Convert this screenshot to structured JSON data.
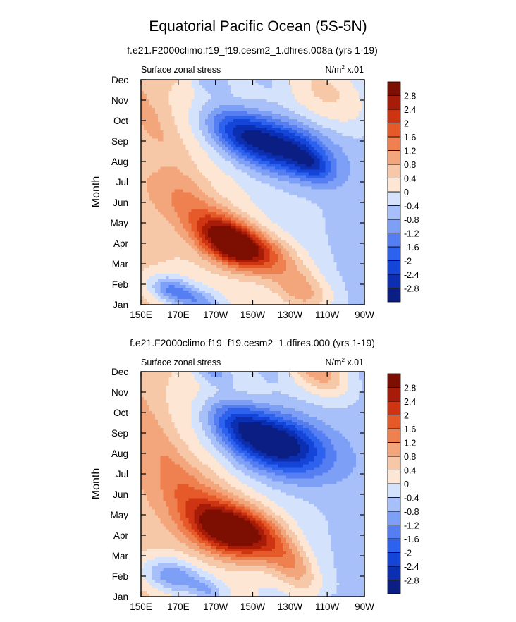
{
  "title": "Equatorial Pacific Ocean (5S-5N)",
  "colors": {
    "scale": [
      "#0a1e84",
      "#0c2fb2",
      "#1544d8",
      "#2d62ee",
      "#557ef2",
      "#7e9ff6",
      "#a8c0fa",
      "#d4e2fc",
      "#fde6d4",
      "#f7c8a8",
      "#f3a57c",
      "#ef8050",
      "#e65a2a",
      "#cf3412",
      "#a61c08",
      "#7d0e02"
    ],
    "axes": "#000000",
    "background": "#ffffff"
  },
  "chart_data": [
    {
      "type": "heatmap",
      "case_label": "f.e21.F2000climo.f19_f19.cesm2_1.dfires.008a (yrs 1-19)",
      "left_label": "Surface zonal stress",
      "units_label": "N/m",
      "units_sup": "2",
      "units_scale": " x.01",
      "ylabel": "Month",
      "xlabel": "",
      "x_ticks": [
        "150E",
        "170E",
        "170W",
        "150W",
        "130W",
        "110W",
        "90W"
      ],
      "y_ticks": [
        "Jan",
        "Feb",
        "Mar",
        "Apr",
        "May",
        "Jun",
        "Jul",
        "Aug",
        "Sep",
        "Oct",
        "Nov",
        "Dec"
      ],
      "xlim": [
        "150E",
        "90W"
      ],
      "ylim": [
        "Jan",
        "Dec"
      ],
      "colorbar_levels": [
        "-2.8",
        "-2.4",
        "-2",
        "-1.6",
        "-1.2",
        "-0.8",
        "-0.4",
        "0",
        "0.4",
        "0.8",
        "1.2",
        "1.6",
        "2",
        "2.4",
        "2.8"
      ],
      "blobs": [
        {
          "lon": 0.4,
          "mon": 3.1,
          "sx": 0.095,
          "sy": 0.88,
          "amp": 3.4
        },
        {
          "lon": 0.55,
          "mon": 2.5,
          "sx": 0.11,
          "sy": 0.7,
          "amp": 1.2
        },
        {
          "lon": 0.2,
          "mon": 5.0,
          "sx": 0.1,
          "sy": 1.1,
          "amp": 0.9
        },
        {
          "lon": 0.72,
          "mon": 0.7,
          "sx": 0.09,
          "sy": 0.9,
          "amp": 1.3
        },
        {
          "lon": 0.62,
          "mon": 7.7,
          "sx": 0.14,
          "sy": 1.0,
          "amp": -2.6
        },
        {
          "lon": 0.42,
          "mon": 8.6,
          "sx": 0.1,
          "sy": 0.9,
          "amp": -1.6
        },
        {
          "lon": 0.77,
          "mon": 6.8,
          "sx": 0.06,
          "sy": 0.6,
          "amp": -1.1
        },
        {
          "lon": 0.14,
          "mon": 0.7,
          "sx": 0.07,
          "sy": 0.5,
          "amp": -1.7
        },
        {
          "lon": 0.28,
          "mon": 0.0,
          "sx": 0.06,
          "sy": 0.5,
          "amp": -1.1
        },
        {
          "lon": 0.3,
          "mon": 11.0,
          "sx": 0.07,
          "sy": 0.5,
          "amp": -0.9
        },
        {
          "lon": 0.85,
          "mon": 10.3,
          "sx": 0.13,
          "sy": 1.3,
          "amp": 0.9
        },
        {
          "lon": 0.05,
          "mon": 9.0,
          "sx": 0.06,
          "sy": 1.8,
          "amp": 0.4
        },
        {
          "lon": 0.55,
          "mon": 11.2,
          "sx": 0.07,
          "sy": 0.8,
          "amp": -0.5
        }
      ]
    },
    {
      "type": "heatmap",
      "case_label": "f.e21.F2000climo.f19_f19.cesm2_1.dfires.000 (yrs 1-19)",
      "left_label": "Surface zonal stress",
      "units_label": "N/m",
      "units_sup": "2",
      "units_scale": " x.01",
      "ylabel": "Month",
      "xlabel": "",
      "x_ticks": [
        "150E",
        "170E",
        "170W",
        "150W",
        "130W",
        "110W",
        "90W"
      ],
      "y_ticks": [
        "Jan",
        "Feb",
        "Mar",
        "Apr",
        "May",
        "Jun",
        "Jul",
        "Aug",
        "Sep",
        "Oct",
        "Nov",
        "Dec"
      ],
      "xlim": [
        "150E",
        "90W"
      ],
      "ylim": [
        "Jan",
        "Dec"
      ],
      "colorbar_levels": [
        "-2.8",
        "-2.4",
        "-2",
        "-1.6",
        "-1.2",
        "-0.8",
        "-0.4",
        "0",
        "0.4",
        "0.8",
        "1.2",
        "1.6",
        "2",
        "2.4",
        "2.8"
      ],
      "blobs": [
        {
          "lon": 0.42,
          "mon": 3.2,
          "sx": 0.13,
          "sy": 0.95,
          "amp": 3.6
        },
        {
          "lon": 0.68,
          "mon": 1.5,
          "sx": 0.07,
          "sy": 1.0,
          "amp": 1.2
        },
        {
          "lon": 0.22,
          "mon": 5.0,
          "sx": 0.12,
          "sy": 1.3,
          "amp": 1.0
        },
        {
          "lon": 0.6,
          "mon": 7.5,
          "sx": 0.15,
          "sy": 1.1,
          "amp": -3.2
        },
        {
          "lon": 0.42,
          "mon": 8.6,
          "sx": 0.09,
          "sy": 0.8,
          "amp": -1.2
        },
        {
          "lon": 0.14,
          "mon": 1.0,
          "sx": 0.09,
          "sy": 0.6,
          "amp": -1.5
        },
        {
          "lon": 0.3,
          "mon": 0.3,
          "sx": 0.05,
          "sy": 0.4,
          "amp": -0.8
        },
        {
          "lon": 0.32,
          "mon": 11.0,
          "sx": 0.06,
          "sy": 0.5,
          "amp": -1.1
        },
        {
          "lon": 0.8,
          "mon": 11.0,
          "sx": 0.08,
          "sy": 0.8,
          "amp": 1.5
        },
        {
          "lon": 0.05,
          "mon": 8.0,
          "sx": 0.06,
          "sy": 2.0,
          "amp": 0.5
        },
        {
          "lon": 0.55,
          "mon": 11.3,
          "sx": 0.06,
          "sy": 0.7,
          "amp": -0.5
        }
      ]
    }
  ]
}
